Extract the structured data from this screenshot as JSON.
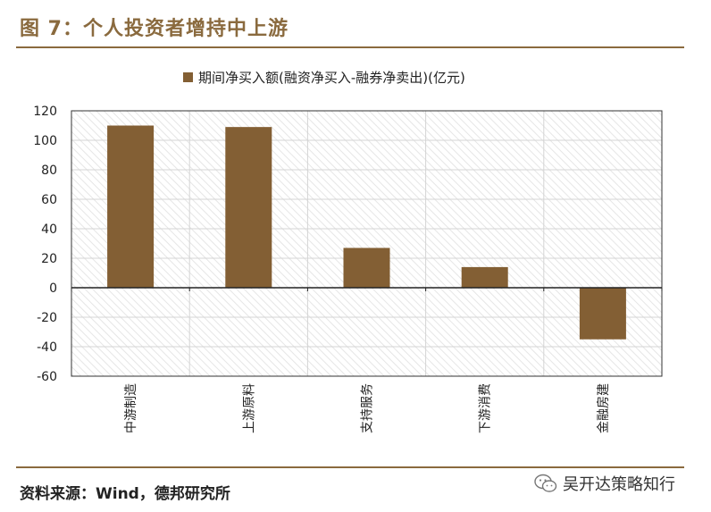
{
  "figure_title": "图 7：个人投资者增持中上游",
  "source_note": "资料来源：Wind，德邦研究所",
  "watermark": {
    "text": "吴开达策略知行",
    "icon": "wechat-icon"
  },
  "colors": {
    "accent": "#8a6a3e",
    "bar": "#835f34"
  },
  "chart_data": {
    "type": "bar",
    "legend_position": "top",
    "categories": [
      "中游制造",
      "上游原料",
      "支持服务",
      "下游消费",
      "金融房建"
    ],
    "series": [
      {
        "name": "期间净买入额(融资净买入-融券净卖出)(亿元)",
        "values": [
          110,
          109,
          27,
          14,
          -35
        ]
      }
    ],
    "ylim": [
      -60,
      120
    ],
    "yticks": [
      -60,
      -40,
      -20,
      0,
      20,
      40,
      60,
      80,
      100,
      120
    ],
    "ytick_labels": [
      "-60",
      "-40",
      "-20",
      "0",
      "20",
      "40",
      "60",
      "80",
      "100",
      "120"
    ],
    "grid": true
  }
}
